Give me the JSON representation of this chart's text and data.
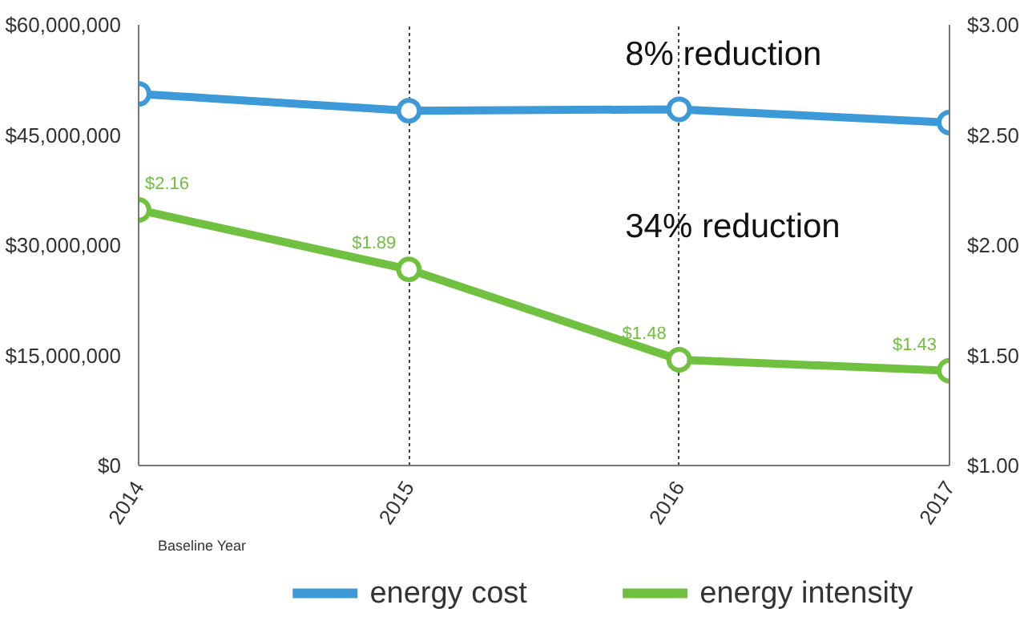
{
  "chart_data": {
    "type": "line",
    "categories": [
      "2014",
      "2015",
      "2016",
      "2017"
    ],
    "series": [
      {
        "name": "energy cost",
        "color": "#3d9ad9",
        "values": [
          50600000,
          48300000,
          48500000,
          46700000
        ]
      },
      {
        "name": "energy intensity",
        "color": "#6fc13f",
        "axis": "y2",
        "values": [
          2.16,
          1.89,
          1.48,
          1.43
        ],
        "value_labels": [
          "$2.16",
          "$1.89",
          "$1.48",
          "$1.43"
        ]
      }
    ],
    "ylim": [
      0,
      60000000
    ],
    "yticks": [
      {
        "value": 0,
        "label": "$0"
      },
      {
        "value": 15000000,
        "label": "$15,000,000"
      },
      {
        "value": 30000000,
        "label": "$30,000,000"
      },
      {
        "value": 45000000,
        "label": "$45,000,000"
      },
      {
        "value": 60000000,
        "label": "$60,000,000"
      }
    ],
    "y2lim": [
      1,
      3
    ],
    "y2ticks": [
      {
        "value": 1,
        "label": "$1.00"
      },
      {
        "value": 1.5,
        "label": "$1.50"
      },
      {
        "value": 2,
        "label": "$2.00"
      },
      {
        "value": 2.5,
        "label": "$2.50"
      },
      {
        "value": 3,
        "label": "$3.00"
      }
    ],
    "annotations": [
      "8% reduction",
      "34% reduction",
      "Baseline Year"
    ],
    "grid": "x",
    "legend": "bottom",
    "marker": "circle",
    "line_style": "solid"
  }
}
